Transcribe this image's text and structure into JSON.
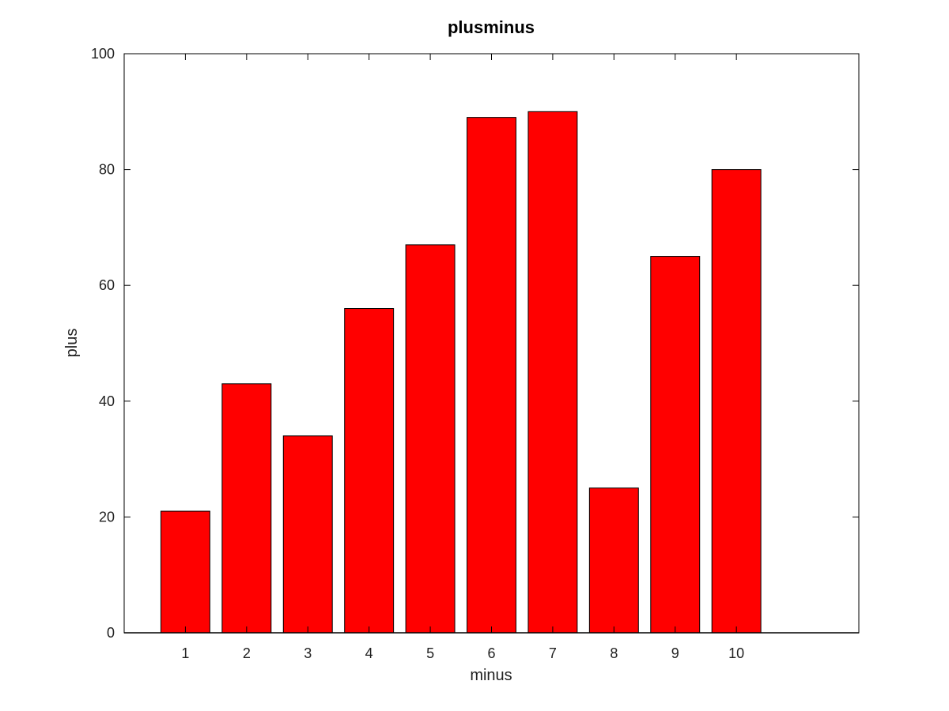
{
  "chart_data": {
    "type": "bar",
    "title": "plusminus",
    "xlabel": "minus",
    "ylabel": "plus",
    "categories": [
      "1",
      "2",
      "3",
      "4",
      "5",
      "6",
      "7",
      "8",
      "9",
      "10"
    ],
    "values": [
      21,
      43,
      34,
      56,
      67,
      89,
      90,
      25,
      65,
      80
    ],
    "xlim": [
      0,
      12
    ],
    "ylim": [
      0,
      100
    ],
    "yticks": [
      0,
      20,
      40,
      60,
      80,
      100
    ],
    "grid": false,
    "legend": "none",
    "colors": {
      "bar_fill": "#ff0000",
      "bar_stroke": "#000000",
      "axis": "#000000"
    }
  }
}
